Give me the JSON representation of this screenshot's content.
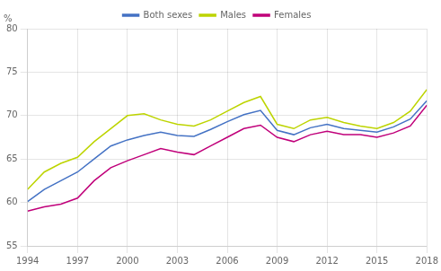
{
  "chart_data": {
    "type": "line",
    "ylabel": "%",
    "x": [
      1994,
      1995,
      1996,
      1997,
      1998,
      1999,
      2000,
      2001,
      2002,
      2003,
      2004,
      2005,
      2006,
      2007,
      2008,
      2009,
      2010,
      2011,
      2012,
      2013,
      2014,
      2015,
      2016,
      2017,
      2018
    ],
    "series": [
      {
        "name": "Both sexes",
        "color": "#4472c4",
        "values": [
          60.1,
          61.5,
          62.5,
          63.5,
          65.0,
          66.5,
          67.2,
          67.7,
          68.1,
          67.7,
          67.6,
          68.4,
          69.3,
          70.1,
          70.6,
          68.3,
          67.8,
          68.6,
          69.0,
          68.5,
          68.3,
          68.1,
          68.7,
          69.6,
          71.7
        ]
      },
      {
        "name": "Males",
        "color": "#bdd400",
        "values": [
          61.5,
          63.5,
          64.5,
          65.2,
          67.0,
          68.5,
          70.0,
          70.2,
          69.5,
          69.0,
          68.8,
          69.5,
          70.5,
          71.5,
          72.2,
          69.0,
          68.5,
          69.5,
          69.8,
          69.2,
          68.8,
          68.5,
          69.2,
          70.5,
          73.0
        ]
      },
      {
        "name": "Females",
        "color": "#c0007a",
        "values": [
          59.0,
          59.5,
          59.8,
          60.5,
          62.5,
          64.0,
          64.8,
          65.5,
          66.2,
          65.8,
          65.5,
          66.5,
          67.5,
          68.5,
          68.9,
          67.5,
          67.0,
          67.8,
          68.2,
          67.8,
          67.8,
          67.5,
          68.0,
          68.8,
          71.2
        ]
      }
    ],
    "xlim": [
      1994,
      2018
    ],
    "xticks": [
      1994,
      1997,
      2000,
      2003,
      2006,
      2009,
      2012,
      2015,
      2018
    ],
    "ylim": [
      55,
      80
    ],
    "yticks": [
      55,
      60,
      65,
      70,
      75,
      80
    ],
    "grid": true,
    "legend": "top"
  }
}
